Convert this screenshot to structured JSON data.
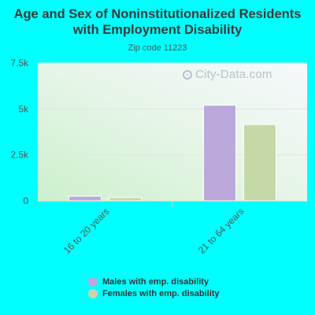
{
  "title": "Age and Sex of Noninstitutionalized Residents with Employment Disability",
  "subtitle": "Zip code 11223",
  "watermark": "City-Data.com",
  "colors": {
    "males": "#bca9db",
    "females": "#c5d9a8",
    "axis_text": "#555555",
    "background": "#00ffff"
  },
  "chart_data": {
    "type": "bar",
    "categories": [
      "16 to 20 years",
      "21 to 64 years"
    ],
    "series": [
      {
        "name": "Males with emp. disability",
        "values": [
          250,
          5200
        ]
      },
      {
        "name": "Females with emp. disability",
        "values": [
          180,
          4150
        ]
      }
    ],
    "ylim": [
      0,
      7500
    ],
    "yticks": [
      0,
      2500,
      5000,
      7500
    ],
    "ytick_labels": [
      "0",
      "2.5k",
      "5k",
      "7.5k"
    ],
    "grid": true,
    "legend_position": "bottom"
  }
}
